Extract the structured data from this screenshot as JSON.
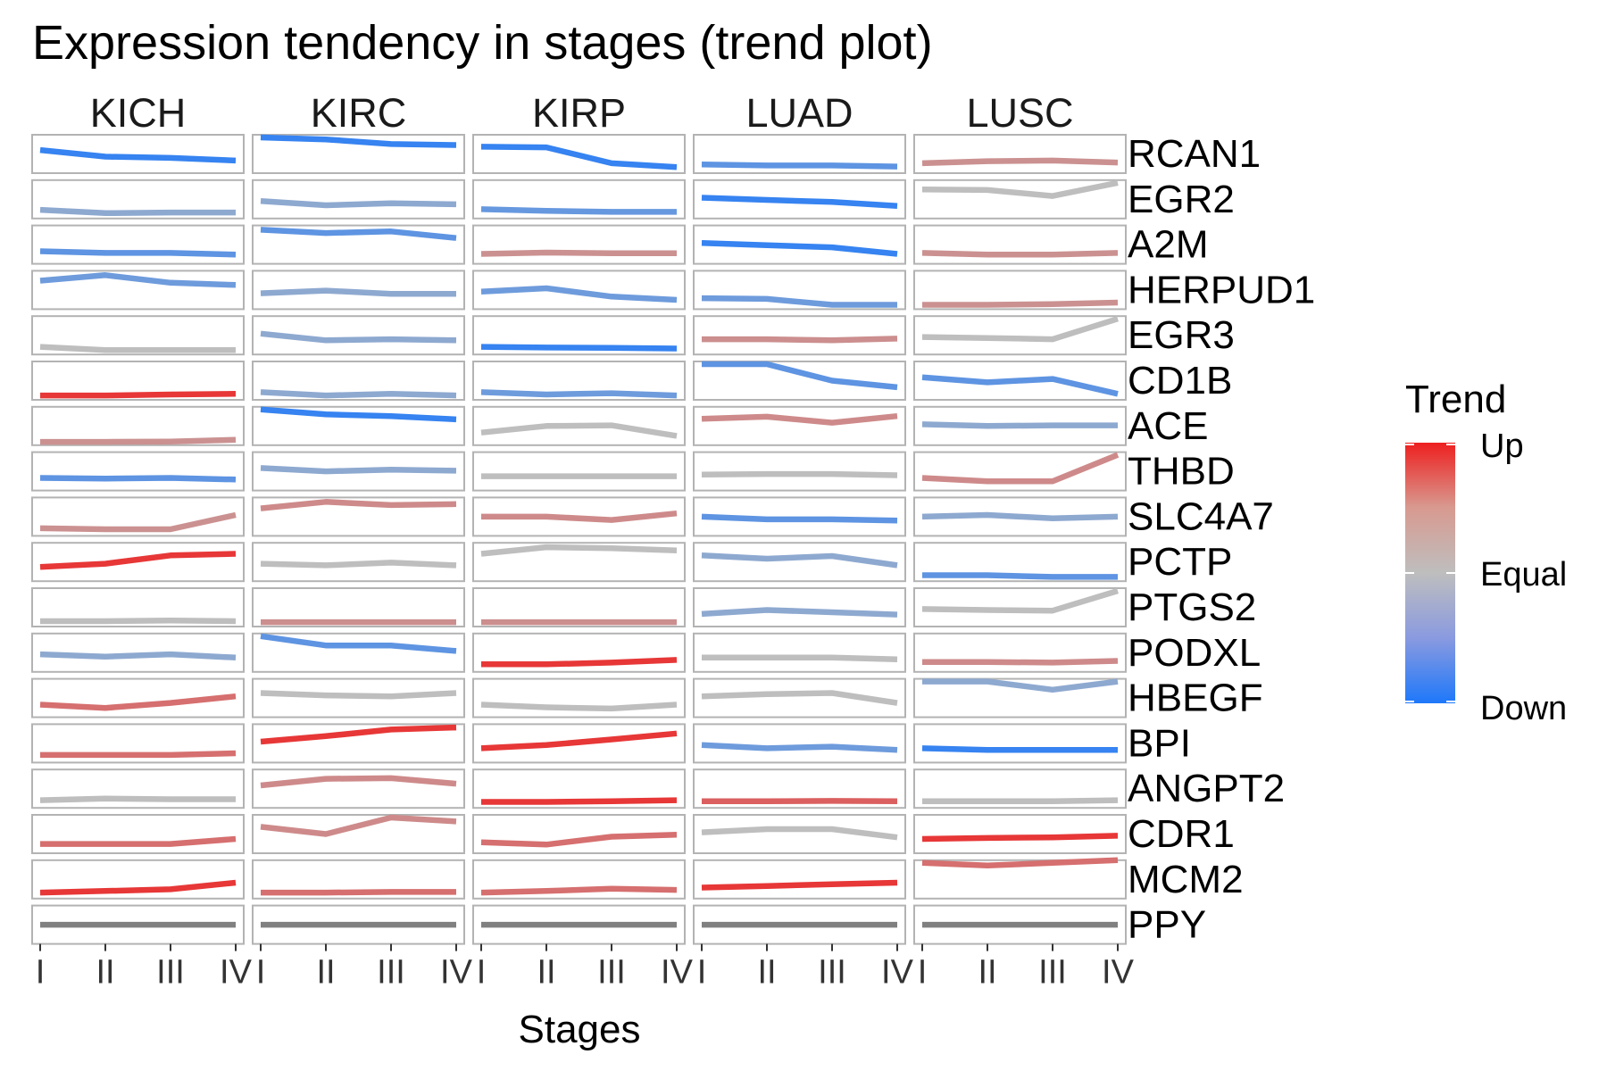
{
  "chart_data": {
    "type": "line",
    "title": "Expression tendency in stages (trend plot)",
    "xlabel": "Stages",
    "ylabel": "",
    "stages": [
      "I",
      "II",
      "III",
      "IV"
    ],
    "cancers": [
      "KICH",
      "KIRC",
      "KIRP",
      "LUAD",
      "LUSC"
    ],
    "genes": [
      "RCAN1",
      "EGR2",
      "A2M",
      "HERPUD1",
      "EGR3",
      "CD1B",
      "ACE",
      "THBD",
      "SLC4A7",
      "PCTP",
      "PTGS2",
      "PODXL",
      "HBEGF",
      "BPI",
      "ANGPT2",
      "CDR1",
      "MCM2",
      "PPY"
    ],
    "legend": {
      "title": "Trend",
      "placement": "right",
      "labels": [
        "Up",
        "Equal",
        "Down"
      ],
      "colors": {
        "up": "#EE1F1F",
        "equal": "#BEBEBE",
        "down": "#1E78FA"
      }
    },
    "trend_scale": [
      -1,
      1
    ],
    "na_color": "#808080",
    "series": [
      {
        "gene": "RCAN1",
        "cancer": "KICH",
        "trend": -0.85,
        "y": [
          0.62,
          0.42,
          0.38,
          0.3
        ]
      },
      {
        "gene": "RCAN1",
        "cancer": "KIRC",
        "trend": -0.85,
        "y": [
          1.0,
          0.94,
          0.8,
          0.77
        ]
      },
      {
        "gene": "RCAN1",
        "cancer": "KIRP",
        "trend": -0.85,
        "y": [
          0.72,
          0.7,
          0.22,
          0.1
        ]
      },
      {
        "gene": "RCAN1",
        "cancer": "LUAD",
        "trend": -0.6,
        "y": [
          0.18,
          0.15,
          0.15,
          0.12
        ]
      },
      {
        "gene": "RCAN1",
        "cancer": "LUSC",
        "trend": 0.28,
        "y": [
          0.22,
          0.28,
          0.3,
          0.24
        ]
      },
      {
        "gene": "EGR2",
        "cancer": "KICH",
        "trend": -0.3,
        "y": [
          0.18,
          0.08,
          0.1,
          0.1
        ]
      },
      {
        "gene": "EGR2",
        "cancer": "KIRC",
        "trend": -0.3,
        "y": [
          0.45,
          0.32,
          0.38,
          0.35
        ]
      },
      {
        "gene": "EGR2",
        "cancer": "KIRP",
        "trend": -0.55,
        "y": [
          0.2,
          0.15,
          0.12,
          0.12
        ]
      },
      {
        "gene": "EGR2",
        "cancer": "LUAD",
        "trend": -0.85,
        "y": [
          0.55,
          0.48,
          0.42,
          0.3
        ]
      },
      {
        "gene": "EGR2",
        "cancer": "LUSC",
        "trend": 0.0,
        "y": [
          0.8,
          0.78,
          0.6,
          1.0
        ]
      },
      {
        "gene": "A2M",
        "cancer": "KICH",
        "trend": -0.6,
        "y": [
          0.3,
          0.25,
          0.25,
          0.2
        ]
      },
      {
        "gene": "A2M",
        "cancer": "KIRC",
        "trend": -0.6,
        "y": [
          0.95,
          0.85,
          0.9,
          0.7
        ]
      },
      {
        "gene": "A2M",
        "cancer": "KIRP",
        "trend": 0.28,
        "y": [
          0.22,
          0.26,
          0.24,
          0.24
        ]
      },
      {
        "gene": "A2M",
        "cancer": "LUAD",
        "trend": -0.85,
        "y": [
          0.55,
          0.48,
          0.42,
          0.22
        ]
      },
      {
        "gene": "A2M",
        "cancer": "LUSC",
        "trend": 0.28,
        "y": [
          0.25,
          0.2,
          0.2,
          0.25
        ]
      },
      {
        "gene": "HERPUD1",
        "cancer": "KICH",
        "trend": -0.5,
        "y": [
          0.78,
          0.95,
          0.72,
          0.65
        ]
      },
      {
        "gene": "HERPUD1",
        "cancer": "KIRC",
        "trend": -0.3,
        "y": [
          0.4,
          0.48,
          0.38,
          0.38
        ]
      },
      {
        "gene": "HERPUD1",
        "cancer": "KIRP",
        "trend": -0.5,
        "y": [
          0.45,
          0.55,
          0.3,
          0.2
        ]
      },
      {
        "gene": "HERPUD1",
        "cancer": "LUAD",
        "trend": -0.5,
        "y": [
          0.25,
          0.23,
          0.05,
          0.05
        ]
      },
      {
        "gene": "HERPUD1",
        "cancer": "LUSC",
        "trend": 0.28,
        "y": [
          0.05,
          0.05,
          0.07,
          0.12
        ]
      },
      {
        "gene": "EGR3",
        "cancer": "KICH",
        "trend": 0.0,
        "y": [
          0.15,
          0.05,
          0.05,
          0.05
        ]
      },
      {
        "gene": "EGR3",
        "cancer": "KIRC",
        "trend": -0.3,
        "y": [
          0.55,
          0.35,
          0.38,
          0.35
        ]
      },
      {
        "gene": "EGR3",
        "cancer": "KIRP",
        "trend": -0.85,
        "y": [
          0.15,
          0.13,
          0.12,
          0.1
        ]
      },
      {
        "gene": "EGR3",
        "cancer": "LUAD",
        "trend": 0.3,
        "y": [
          0.38,
          0.38,
          0.35,
          0.4
        ]
      },
      {
        "gene": "EGR3",
        "cancer": "LUSC",
        "trend": 0.0,
        "y": [
          0.45,
          0.42,
          0.38,
          1.0
        ]
      },
      {
        "gene": "CD1B",
        "cancer": "KICH",
        "trend": 0.85,
        "y": [
          0.05,
          0.05,
          0.08,
          0.1
        ]
      },
      {
        "gene": "CD1B",
        "cancer": "KIRC",
        "trend": -0.3,
        "y": [
          0.15,
          0.05,
          0.1,
          0.05
        ]
      },
      {
        "gene": "CD1B",
        "cancer": "KIRP",
        "trend": -0.5,
        "y": [
          0.15,
          0.08,
          0.12,
          0.05
        ]
      },
      {
        "gene": "CD1B",
        "cancer": "LUAD",
        "trend": -0.6,
        "y": [
          1.0,
          1.0,
          0.5,
          0.3
        ]
      },
      {
        "gene": "CD1B",
        "cancer": "LUSC",
        "trend": -0.6,
        "y": [
          0.6,
          0.45,
          0.55,
          0.1
        ]
      },
      {
        "gene": "ACE",
        "cancer": "KICH",
        "trend": 0.28,
        "y": [
          0.02,
          0.02,
          0.03,
          0.08
        ]
      },
      {
        "gene": "ACE",
        "cancer": "KIRC",
        "trend": -0.85,
        "y": [
          1.0,
          0.85,
          0.8,
          0.7
        ]
      },
      {
        "gene": "ACE",
        "cancer": "KIRP",
        "trend": 0.0,
        "y": [
          0.3,
          0.5,
          0.52,
          0.2
        ]
      },
      {
        "gene": "ACE",
        "cancer": "LUAD",
        "trend": 0.33,
        "y": [
          0.72,
          0.78,
          0.6,
          0.8
        ]
      },
      {
        "gene": "ACE",
        "cancer": "LUSC",
        "trend": -0.3,
        "y": [
          0.55,
          0.5,
          0.52,
          0.52
        ]
      },
      {
        "gene": "THBD",
        "cancer": "KICH",
        "trend": -0.6,
        "y": [
          0.3,
          0.28,
          0.3,
          0.25
        ]
      },
      {
        "gene": "THBD",
        "cancer": "KIRC",
        "trend": -0.3,
        "y": [
          0.6,
          0.5,
          0.55,
          0.52
        ]
      },
      {
        "gene": "THBD",
        "cancer": "KIRP",
        "trend": 0.0,
        "y": [
          0.35,
          0.35,
          0.35,
          0.35
        ]
      },
      {
        "gene": "THBD",
        "cancer": "LUAD",
        "trend": 0.0,
        "y": [
          0.4,
          0.42,
          0.42,
          0.38
        ]
      },
      {
        "gene": "THBD",
        "cancer": "LUSC",
        "trend": 0.33,
        "y": [
          0.3,
          0.2,
          0.2,
          1.0
        ]
      },
      {
        "gene": "SLC4A7",
        "cancer": "KICH",
        "trend": 0.28,
        "y": [
          0.15,
          0.12,
          0.12,
          0.55
        ]
      },
      {
        "gene": "SLC4A7",
        "cancer": "KIRC",
        "trend": 0.33,
        "y": [
          0.75,
          0.95,
          0.85,
          0.88
        ]
      },
      {
        "gene": "SLC4A7",
        "cancer": "KIRP",
        "trend": 0.33,
        "y": [
          0.5,
          0.5,
          0.4,
          0.6
        ]
      },
      {
        "gene": "SLC4A7",
        "cancer": "LUAD",
        "trend": -0.6,
        "y": [
          0.5,
          0.42,
          0.42,
          0.38
        ]
      },
      {
        "gene": "SLC4A7",
        "cancer": "LUSC",
        "trend": -0.3,
        "y": [
          0.5,
          0.55,
          0.45,
          0.5
        ]
      },
      {
        "gene": "PCTP",
        "cancer": "KICH",
        "trend": 0.85,
        "y": [
          0.35,
          0.45,
          0.7,
          0.75
        ]
      },
      {
        "gene": "PCTP",
        "cancer": "KIRC",
        "trend": 0.0,
        "y": [
          0.45,
          0.4,
          0.48,
          0.4
        ]
      },
      {
        "gene": "PCTP",
        "cancer": "KIRP",
        "trend": 0.0,
        "y": [
          0.75,
          0.95,
          0.92,
          0.85
        ]
      },
      {
        "gene": "PCTP",
        "cancer": "LUAD",
        "trend": -0.3,
        "y": [
          0.7,
          0.6,
          0.68,
          0.4
        ]
      },
      {
        "gene": "PCTP",
        "cancer": "LUSC",
        "trend": -0.6,
        "y": [
          0.1,
          0.1,
          0.05,
          0.05
        ]
      },
      {
        "gene": "PTGS2",
        "cancer": "KICH",
        "trend": 0.0,
        "y": [
          0.08,
          0.08,
          0.1,
          0.08
        ]
      },
      {
        "gene": "PTGS2",
        "cancer": "KIRC",
        "trend": 0.3,
        "y": [
          0.05,
          0.05,
          0.05,
          0.05
        ]
      },
      {
        "gene": "PTGS2",
        "cancer": "KIRP",
        "trend": 0.3,
        "y": [
          0.05,
          0.05,
          0.05,
          0.05
        ]
      },
      {
        "gene": "PTGS2",
        "cancer": "LUAD",
        "trend": -0.3,
        "y": [
          0.3,
          0.42,
          0.35,
          0.28
        ]
      },
      {
        "gene": "PTGS2",
        "cancer": "LUSC",
        "trend": 0.0,
        "y": [
          0.45,
          0.42,
          0.4,
          1.0
        ]
      },
      {
        "gene": "PODXL",
        "cancer": "KICH",
        "trend": -0.3,
        "y": [
          0.45,
          0.38,
          0.45,
          0.35
        ]
      },
      {
        "gene": "PODXL",
        "cancer": "KIRC",
        "trend": -0.6,
        "y": [
          1.0,
          0.72,
          0.72,
          0.55
        ]
      },
      {
        "gene": "PODXL",
        "cancer": "KIRP",
        "trend": 0.85,
        "y": [
          0.15,
          0.15,
          0.2,
          0.28
        ]
      },
      {
        "gene": "PODXL",
        "cancer": "LUAD",
        "trend": 0.0,
        "y": [
          0.35,
          0.35,
          0.35,
          0.3
        ]
      },
      {
        "gene": "PODXL",
        "cancer": "LUSC",
        "trend": 0.33,
        "y": [
          0.22,
          0.22,
          0.2,
          0.25
        ]
      },
      {
        "gene": "HBEGF",
        "cancer": "KICH",
        "trend": 0.5,
        "y": [
          0.3,
          0.2,
          0.35,
          0.55
        ]
      },
      {
        "gene": "HBEGF",
        "cancer": "KIRC",
        "trend": 0.0,
        "y": [
          0.65,
          0.58,
          0.55,
          0.65
        ]
      },
      {
        "gene": "HBEGF",
        "cancer": "KIRP",
        "trend": 0.0,
        "y": [
          0.3,
          0.22,
          0.18,
          0.3
        ]
      },
      {
        "gene": "HBEGF",
        "cancer": "LUAD",
        "trend": 0.0,
        "y": [
          0.55,
          0.62,
          0.65,
          0.35
        ]
      },
      {
        "gene": "HBEGF",
        "cancer": "LUSC",
        "trend": -0.3,
        "y": [
          1.0,
          1.0,
          0.75,
          1.0
        ]
      },
      {
        "gene": "BPI",
        "cancer": "KICH",
        "trend": 0.5,
        "y": [
          0.15,
          0.15,
          0.15,
          0.2
        ]
      },
      {
        "gene": "BPI",
        "cancer": "KIRC",
        "trend": 0.85,
        "y": [
          0.55,
          0.72,
          0.92,
          0.98
        ]
      },
      {
        "gene": "BPI",
        "cancer": "KIRP",
        "trend": 0.85,
        "y": [
          0.35,
          0.45,
          0.62,
          0.8
        ]
      },
      {
        "gene": "BPI",
        "cancer": "LUAD",
        "trend": -0.5,
        "y": [
          0.45,
          0.35,
          0.4,
          0.3
        ]
      },
      {
        "gene": "BPI",
        "cancer": "LUSC",
        "trend": -0.85,
        "y": [
          0.35,
          0.3,
          0.3,
          0.3
        ]
      },
      {
        "gene": "ANGPT2",
        "cancer": "KICH",
        "trend": 0.0,
        "y": [
          0.15,
          0.2,
          0.18,
          0.18
        ]
      },
      {
        "gene": "ANGPT2",
        "cancer": "KIRC",
        "trend": 0.33,
        "y": [
          0.6,
          0.8,
          0.82,
          0.65
        ]
      },
      {
        "gene": "ANGPT2",
        "cancer": "KIRP",
        "trend": 0.85,
        "y": [
          0.1,
          0.1,
          0.12,
          0.15
        ]
      },
      {
        "gene": "ANGPT2",
        "cancer": "LUAD",
        "trend": 0.6,
        "y": [
          0.12,
          0.12,
          0.13,
          0.12
        ]
      },
      {
        "gene": "ANGPT2",
        "cancer": "LUSC",
        "trend": 0.0,
        "y": [
          0.12,
          0.12,
          0.12,
          0.15
        ]
      },
      {
        "gene": "CDR1",
        "cancer": "KICH",
        "trend": 0.5,
        "y": [
          0.2,
          0.2,
          0.2,
          0.35
        ]
      },
      {
        "gene": "CDR1",
        "cancer": "KIRC",
        "trend": 0.33,
        "y": [
          0.72,
          0.5,
          1.0,
          0.88
        ]
      },
      {
        "gene": "CDR1",
        "cancer": "KIRP",
        "trend": 0.5,
        "y": [
          0.25,
          0.18,
          0.42,
          0.48
        ]
      },
      {
        "gene": "CDR1",
        "cancer": "LUAD",
        "trend": 0.0,
        "y": [
          0.55,
          0.65,
          0.65,
          0.4
        ]
      },
      {
        "gene": "CDR1",
        "cancer": "LUSC",
        "trend": 0.85,
        "y": [
          0.35,
          0.38,
          0.4,
          0.45
        ]
      },
      {
        "gene": "MCM2",
        "cancer": "KICH",
        "trend": 0.85,
        "y": [
          0.1,
          0.15,
          0.2,
          0.4
        ]
      },
      {
        "gene": "MCM2",
        "cancer": "KIRC",
        "trend": 0.5,
        "y": [
          0.1,
          0.1,
          0.12,
          0.12
        ]
      },
      {
        "gene": "MCM2",
        "cancer": "KIRP",
        "trend": 0.5,
        "y": [
          0.1,
          0.15,
          0.22,
          0.18
        ]
      },
      {
        "gene": "MCM2",
        "cancer": "LUAD",
        "trend": 0.85,
        "y": [
          0.25,
          0.3,
          0.35,
          0.4
        ]
      },
      {
        "gene": "MCM2",
        "cancer": "LUSC",
        "trend": 0.5,
        "y": [
          1.0,
          0.92,
          1.0,
          1.08
        ]
      },
      {
        "gene": "PPY",
        "cancer": "KICH",
        "trend": null,
        "y": [
          0.5,
          0.5,
          0.5,
          0.5
        ]
      },
      {
        "gene": "PPY",
        "cancer": "KIRC",
        "trend": null,
        "y": [
          0.5,
          0.5,
          0.5,
          0.5
        ]
      },
      {
        "gene": "PPY",
        "cancer": "KIRP",
        "trend": null,
        "y": [
          0.5,
          0.5,
          0.5,
          0.5
        ]
      },
      {
        "gene": "PPY",
        "cancer": "LUAD",
        "trend": null,
        "y": [
          0.5,
          0.5,
          0.5,
          0.5
        ]
      },
      {
        "gene": "PPY",
        "cancer": "LUSC",
        "trend": null,
        "y": [
          0.5,
          0.5,
          0.5,
          0.5
        ]
      }
    ]
  }
}
